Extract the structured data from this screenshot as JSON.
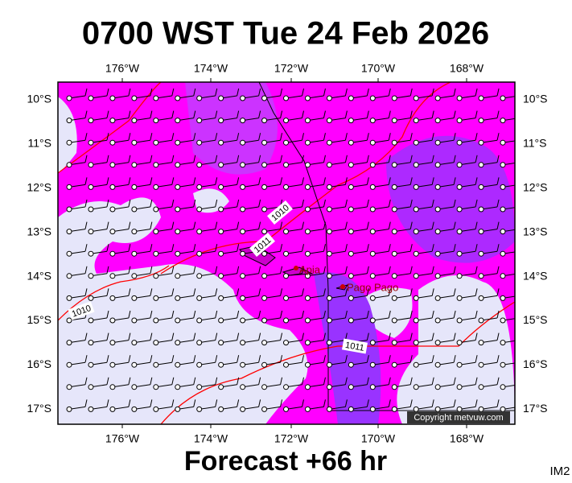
{
  "title": "0700 WST Tue 24 Feb 2026",
  "map": {
    "longitude_labels": [
      "176°W",
      "174°W",
      "172°W",
      "170°W",
      "168°W"
    ],
    "latitude_labels": [
      "10°S",
      "11°S",
      "12°S",
      "13°S",
      "14°S",
      "15°S",
      "16°S",
      "17°S"
    ],
    "places": [
      "Apia",
      "Pago Pago"
    ],
    "isobar_labels": [
      "1010",
      "1011",
      "1010",
      "1011"
    ],
    "copyright": "Copyright metvuw.com"
  },
  "footer": {
    "forecast": "Forecast +66 hr",
    "image_id": "IM2"
  }
}
